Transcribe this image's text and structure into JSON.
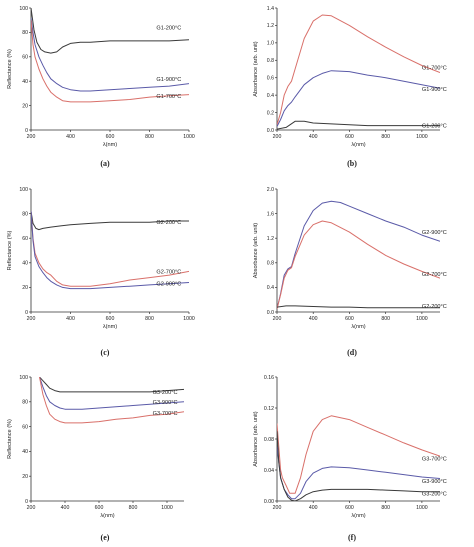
{
  "colors": {
    "black": "#3a3a3a",
    "red": "#d9706a",
    "blue": "#5a5aa8"
  },
  "chart_data": [
    {
      "label": "(a)",
      "type": "line",
      "xlabel": "λ(nm)",
      "ylabel": "Reflectance (%)",
      "xlim": [
        200,
        1000
      ],
      "ylim": [
        0,
        100
      ],
      "xticks": [
        200,
        400,
        600,
        800,
        1000
      ],
      "yticks": [
        0,
        20,
        40,
        60,
        80,
        100
      ],
      "series": [
        {
          "name": "G1-200°C",
          "color": "black",
          "label_at": [
            835,
            84
          ],
          "x": [
            200,
            215,
            230,
            250,
            270,
            300,
            330,
            360,
            400,
            450,
            500,
            600,
            700,
            800,
            900,
            1000
          ],
          "y": [
            100,
            82,
            72,
            66,
            64,
            63,
            64,
            68,
            71,
            72,
            72,
            73,
            73,
            73,
            73,
            74
          ]
        },
        {
          "name": "G1-900°C",
          "color": "blue",
          "label_at": [
            835,
            42
          ],
          "x": [
            200,
            210,
            220,
            240,
            260,
            280,
            300,
            330,
            360,
            400,
            450,
            500,
            600,
            700,
            800,
            900,
            1000
          ],
          "y": [
            92,
            80,
            70,
            60,
            53,
            47,
            42,
            38,
            35,
            33,
            32,
            32,
            33,
            34,
            35,
            36,
            38
          ]
        },
        {
          "name": "G1-700°C",
          "color": "red",
          "label_at": [
            835,
            28
          ],
          "x": [
            200,
            210,
            220,
            240,
            260,
            280,
            300,
            330,
            360,
            400,
            450,
            500,
            600,
            700,
            800,
            900,
            1000
          ],
          "y": [
            90,
            70,
            60,
            50,
            42,
            36,
            31,
            27,
            24,
            23,
            23,
            23,
            24,
            25,
            27,
            28,
            29
          ]
        }
      ]
    },
    {
      "label": "(b)",
      "type": "line",
      "xlabel": "λ(nm)",
      "ylabel": "Absorbance (arb. unit)",
      "xlim": [
        200,
        1100
      ],
      "ylim": [
        0,
        1.4
      ],
      "xticks": [
        200,
        400,
        600,
        800,
        1000
      ],
      "yticks": [
        0.0,
        0.2,
        0.4,
        0.6,
        0.8,
        1.0,
        1.2,
        1.4
      ],
      "series": [
        {
          "name": "G1-700°C",
          "color": "red",
          "label_at": [
            1000,
            0.72
          ],
          "x": [
            200,
            220,
            240,
            260,
            280,
            300,
            350,
            400,
            450,
            500,
            600,
            700,
            800,
            900,
            1000,
            1100
          ],
          "y": [
            0.06,
            0.2,
            0.4,
            0.5,
            0.56,
            0.7,
            1.05,
            1.25,
            1.32,
            1.31,
            1.2,
            1.07,
            0.95,
            0.84,
            0.74,
            0.66
          ]
        },
        {
          "name": "G1-900°C",
          "color": "blue",
          "label_at": [
            1000,
            0.47
          ],
          "x": [
            200,
            220,
            240,
            260,
            280,
            300,
            350,
            400,
            450,
            500,
            600,
            700,
            800,
            900,
            1000,
            1100
          ],
          "y": [
            0.04,
            0.12,
            0.22,
            0.28,
            0.32,
            0.38,
            0.52,
            0.6,
            0.65,
            0.68,
            0.67,
            0.63,
            0.6,
            0.56,
            0.52,
            0.48
          ]
        },
        {
          "name": "G1-200°C",
          "color": "black",
          "label_at": [
            1000,
            0.05
          ],
          "x": [
            200,
            250,
            300,
            350,
            400,
            500,
            600,
            700,
            800,
            900,
            1000,
            1100
          ],
          "y": [
            0.01,
            0.03,
            0.1,
            0.1,
            0.08,
            0.07,
            0.06,
            0.05,
            0.05,
            0.05,
            0.05,
            0.05
          ]
        }
      ]
    },
    {
      "label": "(c)",
      "type": "line",
      "xlabel": "λ(nm)",
      "ylabel": "Reflectance (%)",
      "xlim": [
        200,
        1000
      ],
      "ylim": [
        0,
        100
      ],
      "xticks": [
        200,
        400,
        600,
        800,
        1000
      ],
      "yticks": [
        0,
        20,
        40,
        60,
        80,
        100
      ],
      "series": [
        {
          "name": "G2-200°C",
          "color": "black",
          "label_at": [
            835,
            73
          ],
          "x": [
            200,
            210,
            225,
            240,
            260,
            300,
            350,
            400,
            500,
            600,
            700,
            800,
            900,
            1000
          ],
          "y": [
            82,
            72,
            68,
            67,
            68,
            69,
            70,
            71,
            72,
            73,
            73,
            73,
            74,
            74
          ]
        },
        {
          "name": "G2-700°C",
          "color": "red",
          "label_at": [
            835,
            33
          ],
          "x": [
            200,
            210,
            220,
            240,
            260,
            280,
            300,
            330,
            360,
            400,
            450,
            500,
            600,
            700,
            800,
            900,
            1000
          ],
          "y": [
            82,
            60,
            48,
            40,
            35,
            32,
            30,
            25,
            22,
            21,
            21,
            21,
            23,
            26,
            28,
            30,
            33
          ]
        },
        {
          "name": "G2-900°C",
          "color": "blue",
          "label_at": [
            835,
            23
          ],
          "x": [
            200,
            210,
            220,
            240,
            260,
            280,
            300,
            330,
            360,
            400,
            450,
            500,
            600,
            700,
            800,
            900,
            1000
          ],
          "y": [
            82,
            58,
            45,
            37,
            32,
            28,
            25,
            22,
            20,
            19,
            19,
            19,
            20,
            21,
            22,
            23,
            24
          ]
        }
      ]
    },
    {
      "label": "(d)",
      "type": "line",
      "xlabel": "λ(nm)",
      "ylabel": "Absorbance (arb. unit)",
      "xlim": [
        200,
        1100
      ],
      "ylim": [
        0,
        2.0
      ],
      "xticks": [
        200,
        400,
        600,
        800,
        1000
      ],
      "yticks": [
        0.0,
        0.4,
        0.8,
        1.2,
        1.6,
        2.0
      ],
      "series": [
        {
          "name": "G2-900°C",
          "color": "blue",
          "label_at": [
            1000,
            1.3
          ],
          "x": [
            200,
            220,
            240,
            260,
            280,
            300,
            350,
            400,
            450,
            500,
            550,
            600,
            700,
            800,
            900,
            1000,
            1100
          ],
          "y": [
            0.05,
            0.3,
            0.6,
            0.7,
            0.74,
            0.95,
            1.4,
            1.65,
            1.77,
            1.8,
            1.78,
            1.72,
            1.6,
            1.48,
            1.38,
            1.25,
            1.15
          ]
        },
        {
          "name": "G2-700°C",
          "color": "red",
          "label_at": [
            1000,
            0.62
          ],
          "x": [
            200,
            220,
            240,
            260,
            280,
            300,
            350,
            400,
            450,
            500,
            600,
            700,
            800,
            900,
            1000,
            1100
          ],
          "y": [
            0.05,
            0.28,
            0.55,
            0.68,
            0.72,
            0.9,
            1.25,
            1.42,
            1.48,
            1.45,
            1.3,
            1.1,
            0.92,
            0.78,
            0.66,
            0.55
          ]
        },
        {
          "name": "G2-200°C",
          "color": "black",
          "label_at": [
            1000,
            0.1
          ],
          "x": [
            200,
            250,
            300,
            400,
            500,
            600,
            700,
            800,
            900,
            1000,
            1100
          ],
          "y": [
            0.08,
            0.1,
            0.1,
            0.09,
            0.08,
            0.08,
            0.07,
            0.07,
            0.07,
            0.07,
            0.07
          ]
        }
      ]
    },
    {
      "label": "(e)",
      "type": "line",
      "xlabel": "λ(nm)",
      "ylabel": "Reflectance (%)",
      "xlim": [
        200,
        1100
      ],
      "ylim": [
        0,
        100
      ],
      "xticks": [
        200,
        400,
        600,
        800,
        1000
      ],
      "yticks": [
        0,
        20,
        40,
        60,
        80,
        100
      ],
      "series": [
        {
          "name": "G3-200°C",
          "color": "black",
          "label_at": [
            915,
            88
          ],
          "x": [
            250,
            270,
            290,
            310,
            340,
            370,
            400,
            450,
            500,
            600,
            700,
            800,
            900,
            1000,
            1100
          ],
          "y": [
            100,
            97,
            94,
            91,
            89,
            88,
            88,
            88,
            88,
            88,
            88,
            88,
            88,
            89,
            90
          ]
        },
        {
          "name": "G3-900°C",
          "color": "blue",
          "label_at": [
            915,
            80
          ],
          "x": [
            250,
            270,
            290,
            310,
            340,
            370,
            400,
            450,
            500,
            600,
            700,
            800,
            900,
            1000,
            1100
          ],
          "y": [
            100,
            92,
            85,
            80,
            77,
            75,
            74,
            74,
            74,
            75,
            76,
            77,
            78,
            79,
            80
          ]
        },
        {
          "name": "G3-700°C",
          "color": "red",
          "label_at": [
            915,
            71
          ],
          "x": [
            250,
            270,
            290,
            310,
            340,
            370,
            400,
            450,
            500,
            600,
            700,
            800,
            900,
            1000,
            1100
          ],
          "y": [
            100,
            86,
            77,
            70,
            66,
            64,
            63,
            63,
            63,
            64,
            66,
            67,
            69,
            70,
            72
          ]
        }
      ]
    },
    {
      "label": "(f)",
      "type": "line",
      "xlabel": "λ(nm)",
      "ylabel": "Absorbance (arb. unit)",
      "xlim": [
        200,
        1100
      ],
      "ylim": [
        0,
        0.16
      ],
      "xticks": [
        200,
        400,
        600,
        800,
        1000
      ],
      "yticks": [
        0.0,
        0.04,
        0.08,
        0.12,
        0.16
      ],
      "series": [
        {
          "name": "G3-700°C",
          "color": "red",
          "label_at": [
            1000,
            0.055
          ],
          "x": [
            200,
            210,
            220,
            230,
            250,
            270,
            300,
            330,
            360,
            400,
            450,
            500,
            600,
            700,
            800,
            900,
            1000,
            1100
          ],
          "y": [
            0.1,
            0.07,
            0.04,
            0.03,
            0.02,
            0.01,
            0.01,
            0.03,
            0.06,
            0.09,
            0.105,
            0.11,
            0.105,
            0.095,
            0.085,
            0.075,
            0.066,
            0.058
          ]
        },
        {
          "name": "G3-900°C",
          "color": "blue",
          "label_at": [
            1000,
            0.026
          ],
          "x": [
            200,
            210,
            220,
            240,
            260,
            280,
            300,
            330,
            360,
            400,
            450,
            500,
            600,
            700,
            800,
            900,
            1000,
            1100
          ],
          "y": [
            0.07,
            0.05,
            0.03,
            0.015,
            0.008,
            0.003,
            0.003,
            0.01,
            0.025,
            0.036,
            0.042,
            0.044,
            0.043,
            0.04,
            0.037,
            0.034,
            0.031,
            0.029
          ]
        },
        {
          "name": "G3-200°C",
          "color": "black",
          "label_at": [
            1000,
            0.01
          ],
          "x": [
            200,
            210,
            220,
            240,
            260,
            280,
            300,
            330,
            360,
            400,
            450,
            500,
            600,
            700,
            800,
            900,
            1000,
            1100
          ],
          "y": [
            0.09,
            0.05,
            0.03,
            0.015,
            0.005,
            0.001,
            0.0,
            0.003,
            0.008,
            0.012,
            0.014,
            0.015,
            0.015,
            0.015,
            0.014,
            0.013,
            0.012,
            0.012
          ]
        }
      ]
    }
  ]
}
